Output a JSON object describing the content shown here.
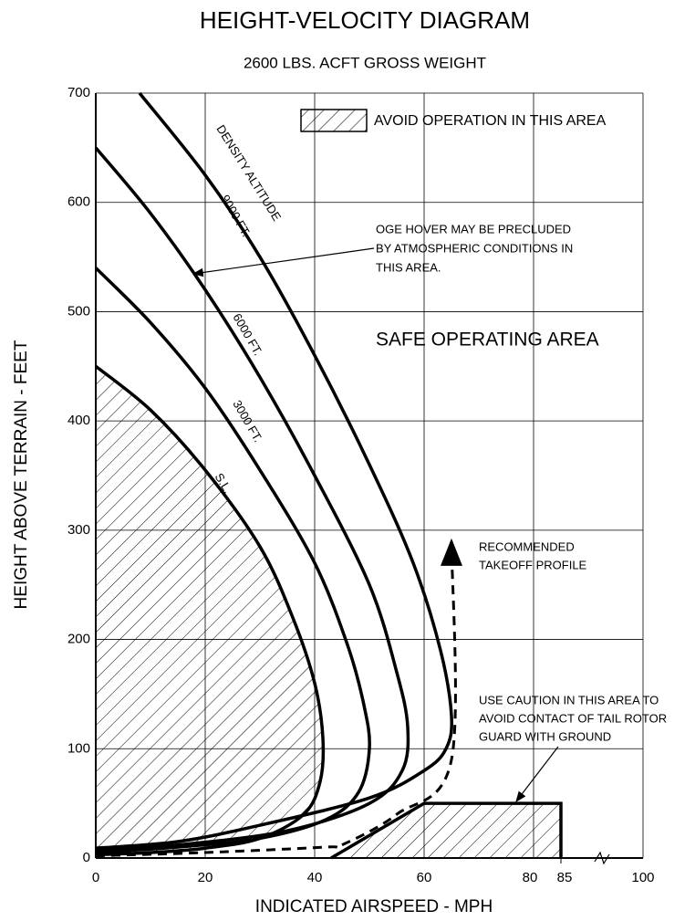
{
  "chart_data": {
    "type": "line",
    "title": "HEIGHT-VELOCITY DIAGRAM",
    "subtitle": "2600 LBS. ACFT GROSS WEIGHT",
    "x_label": "INDICATED AIRSPEED - MPH",
    "y_label": "HEIGHT ABOVE TERRAIN - FEET",
    "xlim": [
      0,
      100
    ],
    "ylim": [
      0,
      700
    ],
    "xticks": [
      0,
      20,
      40,
      60,
      80,
      85,
      100
    ],
    "yticks": [
      0,
      100,
      200,
      300,
      400,
      500,
      600,
      700
    ],
    "grid": true,
    "legend": "AVOID OPERATION IN THIS AREA",
    "series_title": "DENSITY ALTITUDE",
    "series": [
      {
        "name": "S.L.",
        "color": "#000000",
        "hatched": true,
        "x": [
          0,
          10,
          20,
          30,
          36,
          40,
          41.5,
          41,
          38,
          30,
          20,
          10,
          0
        ],
        "values": [
          450,
          410,
          355,
          285,
          220,
          160,
          110,
          70,
          40,
          18,
          9,
          5,
          3
        ]
      },
      {
        "name": "3000 FT.",
        "color": "#000000",
        "x": [
          0,
          10,
          20,
          30,
          40,
          46,
          49,
          50,
          48,
          42,
          30,
          15,
          0
        ],
        "values": [
          540,
          490,
          430,
          355,
          270,
          195,
          140,
          100,
          60,
          35,
          18,
          10,
          5
        ]
      },
      {
        "name": "6000 FT.",
        "color": "#000000",
        "x": [
          0,
          10,
          20,
          30,
          40,
          50,
          55,
          57,
          56,
          50,
          35,
          15,
          0
        ],
        "values": [
          650,
          590,
          520,
          440,
          350,
          250,
          170,
          120,
          80,
          50,
          25,
          12,
          7
        ]
      },
      {
        "name": "9000 FT.",
        "color": "#000000",
        "x": [
          8,
          20,
          30,
          40,
          50,
          58,
          63,
          65,
          64,
          60,
          50,
          30,
          15,
          0
        ],
        "values": [
          700,
          625,
          550,
          460,
          360,
          270,
          190,
          130,
          100,
          80,
          55,
          30,
          15,
          9
        ]
      },
      {
        "color": "#000000",
        "dash": true,
        "x": [
          0,
          20,
          42,
          45,
          55,
          65,
          65
        ],
        "values": [
          2,
          5,
          10,
          12,
          40,
          90,
          290
        ]
      }
    ],
    "regions": [
      {
        "x": [
          43,
          60,
          85,
          85
        ],
        "values": [
          0,
          50,
          50,
          0
        ]
      }
    ],
    "annotations": {
      "oge": [
        "OGE HOVER MAY BE PRECLUDED",
        "BY ATMOSPHERIC CONDITIONS IN",
        "THIS AREA."
      ],
      "safe": "SAFE OPERATING AREA",
      "takeoff": [
        "RECOMMENDED",
        "TAKEOFF PROFILE"
      ],
      "caution": [
        "USE CAUTION IN THIS AREA TO",
        "AVOID CONTACT OF TAIL ROTOR",
        "GUARD WITH GROUND"
      ]
    }
  }
}
